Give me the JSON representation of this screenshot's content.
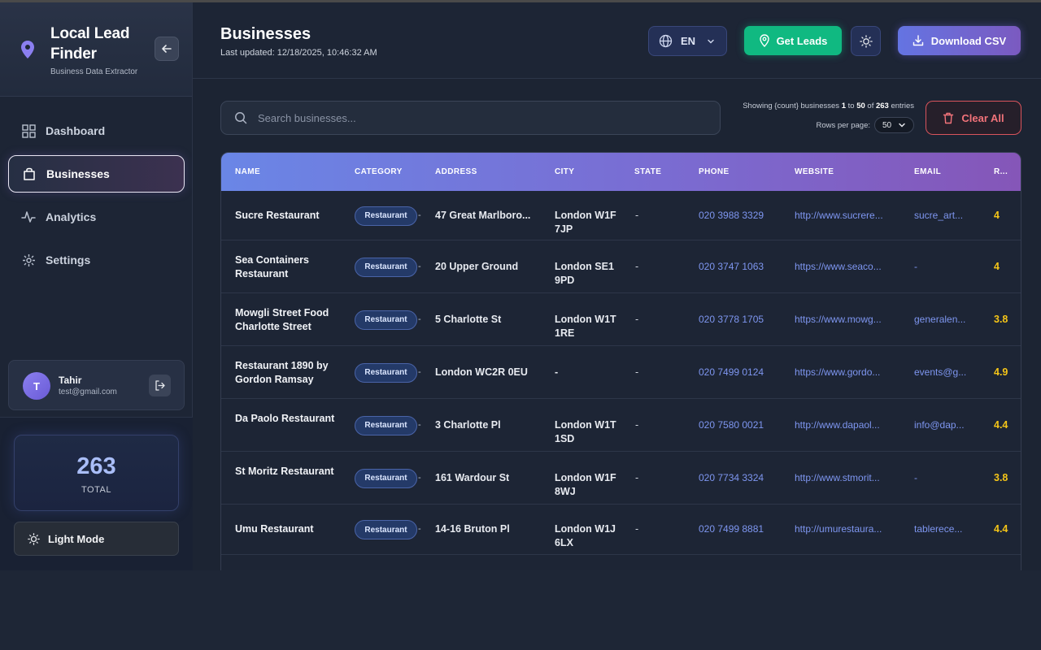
{
  "brand": {
    "title": "Local Lead Finder",
    "subtitle": "Business Data Extractor"
  },
  "nav": [
    {
      "label": "Dashboard",
      "icon": "grid-icon",
      "active": false
    },
    {
      "label": "Businesses",
      "icon": "bag-icon",
      "active": true
    },
    {
      "label": "Analytics",
      "icon": "activity-icon",
      "active": false
    },
    {
      "label": "Settings",
      "icon": "settings-icon",
      "active": false
    }
  ],
  "user": {
    "initial": "T",
    "name": "Tahir",
    "email": "test@gmail.com"
  },
  "stats": {
    "total": "263",
    "total_label": "TOTAL"
  },
  "theme_toggle": {
    "label": "Light Mode"
  },
  "header": {
    "title": "Businesses",
    "last_updated": "Last updated: 12/18/2025, 10:46:32 AM",
    "language": "EN",
    "get_leads_label": "Get Leads",
    "download_label": "Download CSV"
  },
  "search": {
    "placeholder": "Search businesses..."
  },
  "pagination": {
    "showing_prefix": "Showing {count} businesses ",
    "from": "1",
    "to_word": " to ",
    "to": "50",
    "of_word": " of ",
    "total": "263",
    "suffix": " entries",
    "rows_label": "Rows per page:",
    "rows_value": "50"
  },
  "clear_label": "Clear All",
  "table": {
    "columns": [
      "NAME",
      "CATEGORY",
      "ADDRESS",
      "CITY",
      "STATE",
      "PHONE",
      "WEBSITE",
      "EMAIL",
      "R..."
    ],
    "rows": [
      {
        "name": "Sucre Restaurant",
        "category": "Restaurant",
        "tail": "-",
        "address": "47 Great Marlboro...",
        "city": "London W1F 7JP",
        "state": "-",
        "phone": "020 3988 3329",
        "website": "http://www.sucrere...",
        "email": "sucre_art...",
        "rating": "4"
      },
      {
        "name": "Sea Containers Restaurant",
        "category": "Restaurant",
        "tail": "-",
        "address": "20 Upper Ground",
        "city": "London SE1 9PD",
        "state": "-",
        "phone": "020 3747 1063",
        "website": "https://www.seaco...",
        "email": "-",
        "rating": "4"
      },
      {
        "name": "Mowgli Street Food Charlotte Street",
        "category": "Restaurant",
        "tail": "-",
        "address": "5 Charlotte St",
        "city": "London W1T 1RE",
        "state": "-",
        "phone": "020 3778 1705",
        "website": "https://www.mowg...",
        "email": "generalen...",
        "rating": "3.8"
      },
      {
        "name": "Restaurant 1890 by Gordon Ramsay",
        "category": "Restaurant",
        "tail": "-",
        "address": "London WC2R 0EU",
        "city": "-",
        "state": "-",
        "phone": "020 7499 0124",
        "website": "https://www.gordo...",
        "email": "events@g...",
        "rating": "4.9"
      },
      {
        "name": "Da Paolo Restaurant",
        "category": "Restaurant",
        "tail": "-",
        "address": "3 Charlotte Pl",
        "city": "London W1T 1SD",
        "state": "-",
        "phone": "020 7580 0021",
        "website": "http://www.dapaol...",
        "email": "info@dap...",
        "rating": "4.4"
      },
      {
        "name": "St Moritz Restaurant",
        "category": "Restaurant",
        "tail": "-",
        "address": "161 Wardour St",
        "city": "London W1F 8WJ",
        "state": "-",
        "phone": "020 7734 3324",
        "website": "http://www.stmorit...",
        "email": "-",
        "rating": "3.8"
      },
      {
        "name": "Umu Restaurant",
        "category": "Restaurant",
        "tail": "-",
        "address": "14-16 Bruton Pl",
        "city": "London W1J 6LX",
        "state": "-",
        "phone": "020 7499 8881",
        "website": "http://umurestaura...",
        "email": "tablerece...",
        "rating": "4.4"
      }
    ]
  },
  "colors": {
    "accent": "#6a86e6",
    "success": "#10b981",
    "danger": "#d9545c",
    "rating": "#f5c518",
    "link": "#7e96f0"
  }
}
